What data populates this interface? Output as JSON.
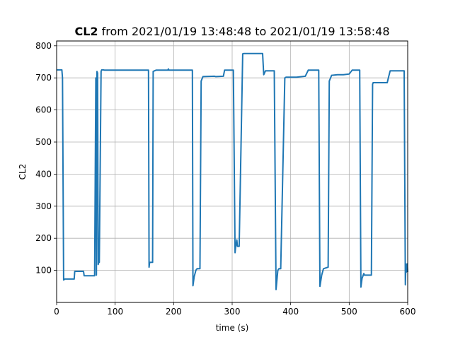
{
  "chart_data": {
    "type": "line",
    "title_bold": "CL2",
    "title_rest": " from 2021/01/19 13:48:48 to 2021/01/19 13:58:48",
    "xlabel": "time (s)",
    "ylabel": "CL2",
    "xlim": [
      0,
      600
    ],
    "ylim": [
      0,
      815
    ],
    "x_ticks": [
      0,
      100,
      200,
      300,
      400,
      500,
      600
    ],
    "y_ticks": [
      100,
      200,
      300,
      400,
      500,
      600,
      700,
      800
    ],
    "grid": true,
    "line_color": "#1f77b4",
    "series": [
      {
        "x": [
          0,
          9,
          10,
          12,
          14,
          30,
          31,
          46,
          47,
          65,
          67,
          68,
          69,
          70,
          71,
          72,
          73,
          76,
          77,
          80,
          82,
          100,
          130,
          157,
          158,
          159,
          164,
          165,
          170,
          190,
          191,
          192,
          232,
          233,
          235,
          238,
          240,
          245,
          247,
          250,
          270,
          272,
          285,
          287,
          302,
          305,
          306,
          308,
          309,
          312,
          318,
          320,
          352,
          354,
          357,
          372,
          375,
          378,
          380,
          383,
          390,
          392,
          410,
          425,
          430,
          448,
          450,
          453,
          456,
          464,
          466,
          470,
          480,
          490,
          500,
          505,
          510,
          518,
          520,
          522,
          525,
          526,
          538,
          540,
          541,
          542,
          565,
          567,
          570,
          575,
          590,
          594,
          596,
          597,
          598,
          599,
          600
        ],
        "values": [
          725,
          725,
          700,
          70,
          73,
          73,
          97,
          97,
          83,
          83,
          700,
          85,
          720,
          715,
          118,
          125,
          125,
          720,
          725,
          725,
          724,
          724,
          724,
          724,
          110,
          125,
          125,
          720,
          724,
          724,
          728,
          724,
          724,
          52,
          80,
          100,
          105,
          105,
          690,
          704,
          705,
          704,
          705,
          724,
          724,
          155,
          175,
          195,
          175,
          175,
          775,
          776,
          776,
          710,
          722,
          722,
          40,
          100,
          105,
          105,
          700,
          702,
          702,
          705,
          724,
          724,
          50,
          85,
          105,
          110,
          690,
          708,
          710,
          710,
          712,
          724,
          724,
          724,
          48,
          75,
          90,
          85,
          85,
          680,
          685,
          685,
          685,
          700,
          722,
          722,
          722,
          722,
          55,
          120,
          95,
          120,
          95
        ]
      }
    ]
  }
}
